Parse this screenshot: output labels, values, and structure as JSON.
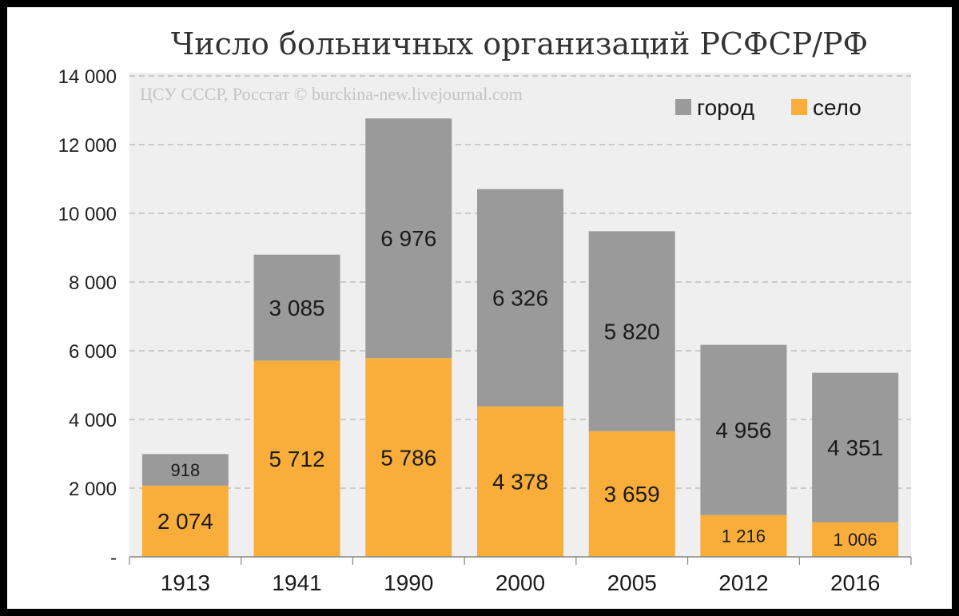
{
  "chart_data": {
    "type": "bar",
    "stacked": true,
    "title": "Число больничных организаций РСФСР/РФ",
    "watermark": "ЦСУ СССР, Росстат © burckina-new.livejournal.com",
    "categories": [
      "1913",
      "1941",
      "1990",
      "2000",
      "2005",
      "2012",
      "2016"
    ],
    "series": [
      {
        "name": "село",
        "color": "#f9ae3b",
        "values": [
          2074,
          5712,
          5786,
          4378,
          3659,
          1216,
          1006
        ],
        "labels": [
          "2 074",
          "5 712",
          "5 786",
          "4 378",
          "3 659",
          "1 216",
          "1 006"
        ]
      },
      {
        "name": "город",
        "color": "#9a9a9a",
        "values": [
          918,
          3085,
          6976,
          6326,
          5820,
          4956,
          4351
        ],
        "labels": [
          "918",
          "3 085",
          "6 976",
          "6 326",
          "5 820",
          "4 956",
          "4 351"
        ]
      }
    ],
    "legend_order": [
      "город",
      "село"
    ],
    "legend_position": "top-right",
    "ylim": [
      0,
      14000
    ],
    "yticks": [
      {
        "value": 0,
        "label": "-"
      },
      {
        "value": 2000,
        "label": "2 000"
      },
      {
        "value": 4000,
        "label": "4 000"
      },
      {
        "value": 6000,
        "label": "6 000"
      },
      {
        "value": 8000,
        "label": "8 000"
      },
      {
        "value": 10000,
        "label": "10 000"
      },
      {
        "value": 12000,
        "label": "12 000"
      },
      {
        "value": 14000,
        "label": "14 000"
      }
    ],
    "grid": true,
    "plot_background": "#efefef"
  }
}
